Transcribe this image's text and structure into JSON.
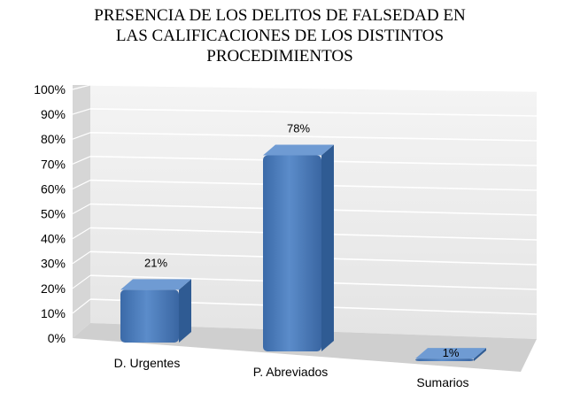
{
  "chart_data": {
    "type": "bar",
    "title_lines": [
      "PRESENCIA DE LOS DELITOS DE FALSEDAD EN",
      "LAS CALIFICACIONES DE LOS DISTINTOS",
      "PROCEDIMIENTOS"
    ],
    "categories": [
      "D. Urgentes",
      "P. Abreviados",
      "Sumarios"
    ],
    "values": [
      21,
      78,
      1
    ],
    "data_labels": [
      "21%",
      "78%",
      "1%"
    ],
    "y_ticks": [
      "0%",
      "10%",
      "20%",
      "30%",
      "40%",
      "50%",
      "60%",
      "70%",
      "80%",
      "90%",
      "100%"
    ],
    "ylim": [
      0,
      100
    ],
    "grid": true,
    "legend": "none",
    "style": "3d-column",
    "colors": {
      "bar_front": "#4f81bd",
      "bar_side": "#2f5b93",
      "bar_top": "#6f9bd3",
      "wall": "#eeeeee",
      "side_wall": "#d9d9d9",
      "floor": "#d0d0d0",
      "grid": "#ffffff"
    }
  }
}
